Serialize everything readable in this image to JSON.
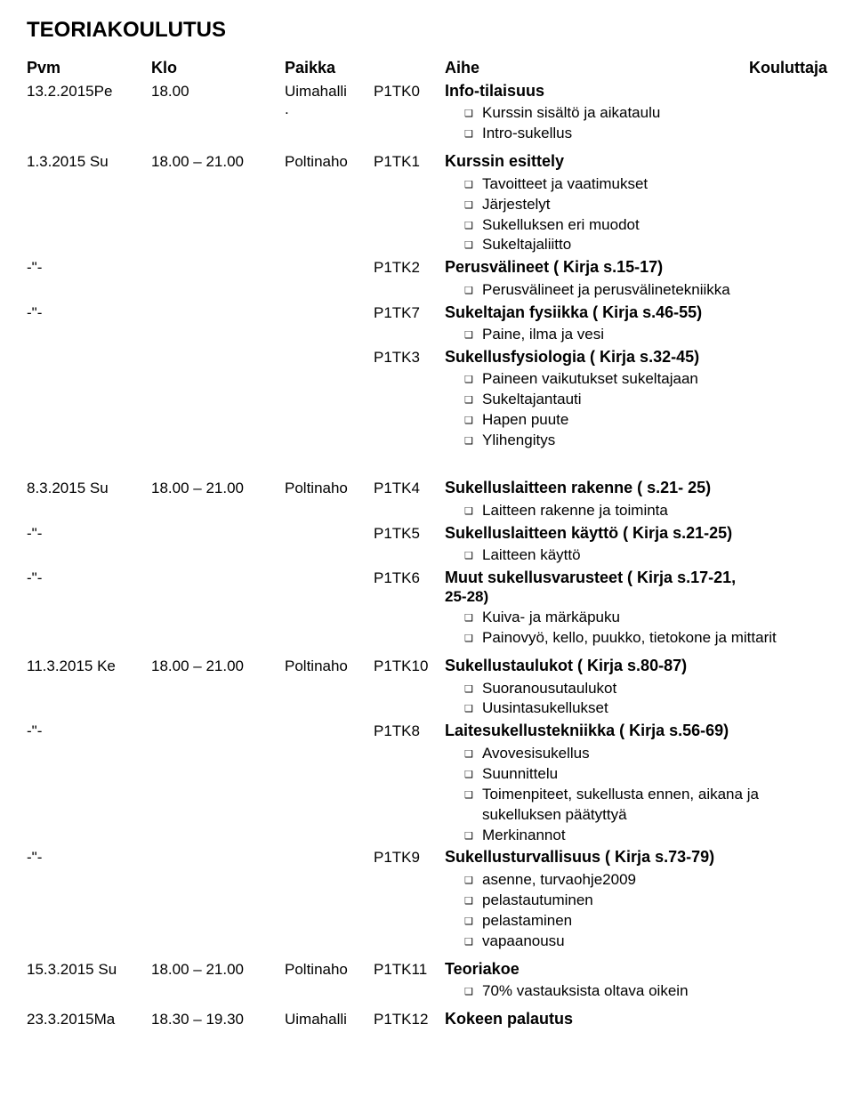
{
  "title": "TEORIAKOULUTUS",
  "headers": {
    "pvm": "Pvm",
    "klo": "Klo",
    "paikka": "Paikka",
    "aihe": "Aihe",
    "kouluttaja": "Kouluttaja"
  },
  "rows": [
    {
      "pvm": "13.2.2015Pe",
      "klo": "18.00",
      "paikka": "Uimahalli",
      "paikka_suffix": ".",
      "code": "P1TK0",
      "topic": "Info-tilaisuus",
      "subs": [
        "Kurssin sisältö ja aikataulu",
        "Intro-sukellus"
      ],
      "gap_after": "small"
    },
    {
      "pvm": "1.3.2015 Su",
      "klo": "18.00 – 21.00",
      "paikka": "Poltinaho",
      "code": "P1TK1",
      "topic": "Kurssin esittely",
      "subs": [
        "Tavoitteet ja vaatimukset",
        "Järjestelyt",
        "Sukelluksen eri muodot",
        "Sukeltajaliitto"
      ]
    },
    {
      "pvm": "-\"-",
      "klo": "",
      "paikka": "",
      "code": "P1TK2",
      "topic": "Perusvälineet ( Kirja s.15-17)",
      "subs": [
        "Perusvälineet ja perusvälinetekniikka"
      ]
    },
    {
      "pvm": "-\"-",
      "klo": "",
      "paikka": "",
      "code": "P1TK7",
      "topic": "Sukeltajan fysiikka ( Kirja s.46-55)",
      "subs": [
        "Paine, ilma ja vesi"
      ]
    },
    {
      "pvm": "",
      "klo": "",
      "paikka": "",
      "code": "P1TK3",
      "topic": "Sukellusfysiologia ( Kirja s.32-45)",
      "subs": [
        "Paineen vaikutukset sukeltajaan",
        "Sukeltajantauti",
        "Hapen puute",
        "Ylihengitys"
      ],
      "gap_after": "block"
    },
    {
      "pvm": "8.3.2015 Su",
      "klo": "18.00 – 21.00",
      "paikka": "Poltinaho",
      "code": "P1TK4",
      "topic": "Sukelluslaitteen rakenne ( s.21-  25)",
      "subs": [
        "Laitteen rakenne ja toiminta"
      ]
    },
    {
      "pvm": "-\"-",
      "klo": "",
      "paikka": "",
      "code": "P1TK5",
      "topic": "Sukelluslaitteen käyttö ( Kirja s.21-25)",
      "subs": [
        "Laitteen käyttö"
      ]
    },
    {
      "pvm": "-\"-",
      "klo": "",
      "paikka": "",
      "code": "P1TK6",
      "topic": "Muut sukellusvarusteet ( Kirja s.17-21,",
      "topic_line2": " 25-28)",
      "subs": [
        "Kuiva- ja märkäpuku",
        "Painovyö, kello, puukko, tietokone ja mittarit"
      ],
      "gap_after": "small"
    },
    {
      "pvm": "11.3.2015 Ke",
      "klo": "18.00 – 21.00",
      "paikka": "Poltinaho",
      "code": "P1TK10",
      "topic": "Sukellustaulukot ( Kirja s.80-87)",
      "subs": [
        "Suoranousutaulukot",
        "Uusintasukellukset"
      ]
    },
    {
      "pvm": "-\"-",
      "klo": "",
      "paikka": "",
      "code": "P1TK8",
      "topic": "Laitesukellustekniikka ( Kirja s.56-69)",
      "subs": [
        "Avovesisukellus",
        "Suunnittelu",
        "Toimenpiteet, sukellusta ennen, aikana ja sukelluksen päätyttyä",
        "Merkinannot"
      ]
    },
    {
      "pvm": "-\"-",
      "klo": "",
      "paikka": "",
      "code": "P1TK9",
      "topic": "Sukellusturvallisuus ( Kirja s.73-79)",
      "subs": [
        "asenne, turvaohje2009",
        "pelastautuminen",
        "pelastaminen",
        "vapaanousu"
      ],
      "gap_after": "small"
    },
    {
      "pvm": "15.3.2015 Su",
      "klo": "18.00 – 21.00",
      "paikka": "Poltinaho",
      "code": "P1TK11",
      "topic": "Teoriakoe",
      "subs": [
        "70% vastauksista oltava oikein"
      ],
      "gap_after": "small"
    },
    {
      "pvm": "23.3.2015Ma",
      "klo": "18.30 – 19.30",
      "paikka": "Uimahalli",
      "code": "P1TK12",
      "topic": "Kokeen palautus",
      "subs": []
    }
  ],
  "colors": {
    "text": "#000000",
    "bg": "#ffffff"
  }
}
